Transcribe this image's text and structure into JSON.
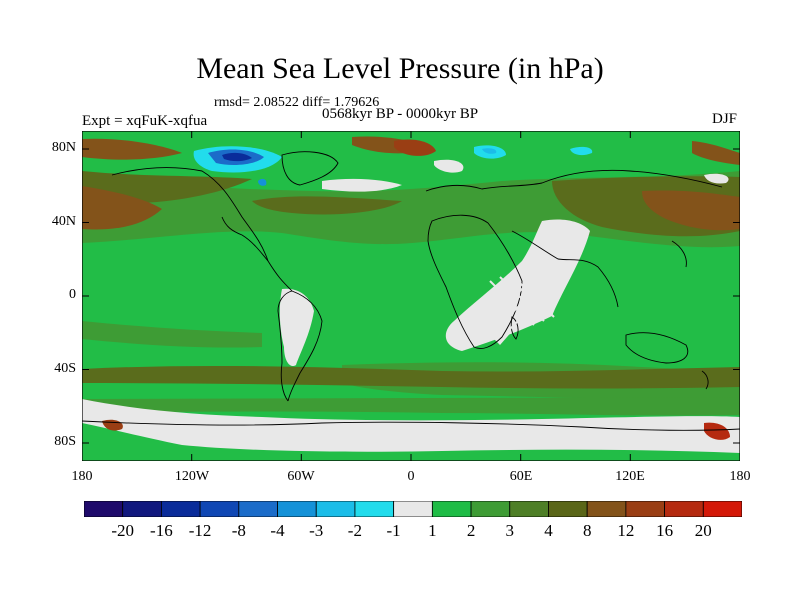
{
  "title": "Mean Sea Level Pressure (in hPa)",
  "stats": "rmsd= 2.08522 diff= 1.79626",
  "period": "0568kyr BP - 0000kyr BP",
  "experiment": "Expt = xqFuK-xqfua",
  "season": "DJF",
  "map": {
    "lat_ticks": [
      "80N",
      "40N",
      "0",
      "40S",
      "80S"
    ],
    "lon_ticks": [
      "180",
      "120W",
      "60W",
      "0",
      "60E",
      "120E",
      "180"
    ],
    "lat_range": [
      -90,
      90
    ],
    "lon_range": [
      -180,
      180
    ]
  },
  "colorbar": {
    "labels": [
      "-20",
      "-16",
      "-12",
      "-8",
      "-4",
      "-3",
      "-2",
      "-1",
      "1",
      "2",
      "3",
      "4",
      "8",
      "12",
      "16",
      "20"
    ],
    "colors": [
      "#1f0a6b",
      "#11187e",
      "#0a2c9a",
      "#1047b4",
      "#1b6cc9",
      "#1592d8",
      "#1bbde8",
      "#22dcec",
      "#e8e8e8",
      "#1fbc46",
      "#3e9c35",
      "#4e7f26",
      "#5a6618",
      "#83531a",
      "#9a3e14",
      "#b52a10",
      "#d41808"
    ]
  }
}
